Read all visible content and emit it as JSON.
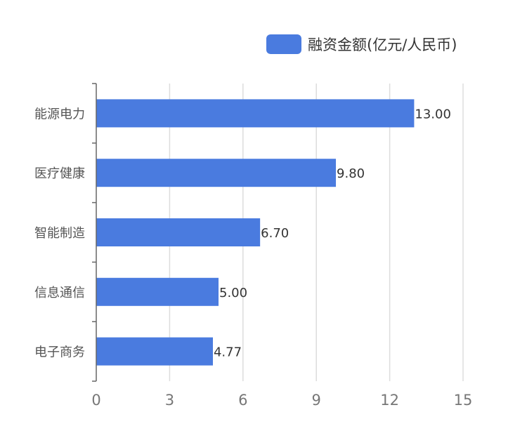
{
  "chart_data": {
    "type": "bar",
    "orientation": "horizontal",
    "categories": [
      "能源电力",
      "医疗健康",
      "智能制造",
      "信息通信",
      "电子商务"
    ],
    "series": [
      {
        "name": "融资金额(亿元/人民币)",
        "values": [
          13.0,
          9.8,
          6.7,
          5.0,
          4.77
        ],
        "data_labels": [
          "13.00",
          "9.80",
          "6.70",
          "5.00",
          "4.77"
        ]
      }
    ],
    "xlim": [
      0,
      15
    ],
    "xticks": [
      0,
      3,
      6,
      9,
      12,
      15
    ],
    "xtick_labels": [
      "0",
      "3",
      "6",
      "9",
      "12",
      "15"
    ],
    "grid": true,
    "legend_position": "top-right"
  },
  "colors": {
    "bar": "#4a7bdf",
    "grid": "#dddddd",
    "axis": "#666666",
    "tick_text": "#777777",
    "category_text": "#555555",
    "label_text": "#333333",
    "legend_text": "#333333"
  }
}
